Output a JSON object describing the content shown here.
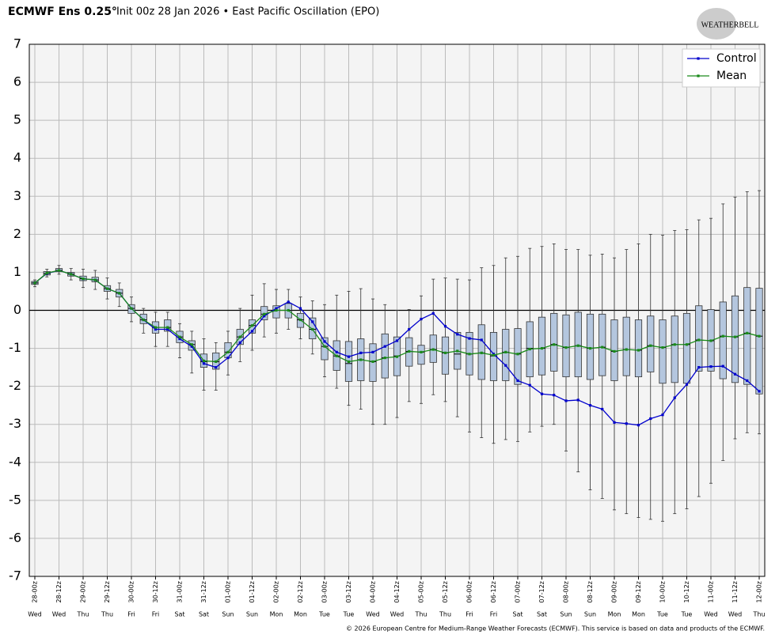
{
  "chart_data": {
    "type": "box",
    "title": "ECMWF Ens 0.25°",
    "subtitle": "Init 00z 28 Jan 2026 • East Pacific Oscillation (EPO)",
    "logo": "WEATHERBELL",
    "credit": "© 2026 European Centre for Medium-Range Weather Forecasts (ECMWF). This service is based on data and products of the ECMWF.",
    "categories": [
      "28-00z",
      null,
      "28-12z",
      null,
      "29-00z",
      null,
      "29-12z",
      null,
      "30-00z",
      null,
      "30-12z",
      null,
      "31-00z",
      null,
      "31-12z",
      null,
      "01-00z",
      null,
      "01-12z",
      null,
      "02-00z",
      null,
      "02-12z",
      null,
      "03-00z",
      null,
      "03-12z",
      null,
      "04-00z",
      null,
      "04-12z",
      null,
      "05-00z",
      null,
      "05-12z",
      null,
      "06-00z",
      null,
      "06-12z",
      null,
      "07-00z",
      null,
      "07-12z",
      null,
      "08-00z",
      null,
      "08-12z",
      null,
      "09-00z",
      null,
      "09-12z",
      null,
      "10-00z",
      null,
      "10-12z",
      null,
      "11-00z",
      null,
      "11-12z",
      null,
      "12-00z"
    ],
    "weekdays": [
      "Wed",
      null,
      "Wed",
      null,
      "Thu",
      null,
      "Thu",
      null,
      "Fri",
      null,
      "Fri",
      null,
      "Sat",
      null,
      "Sat",
      null,
      "Sun",
      null,
      "Sun",
      null,
      "Mon",
      null,
      "Mon",
      null,
      "Tue",
      null,
      "Tue",
      null,
      "Wed",
      null,
      "Wed",
      null,
      "Thu",
      null,
      "Thu",
      null,
      "Fri",
      null,
      "Fri",
      null,
      "Sat",
      null,
      "Sat",
      null,
      "Sun",
      null,
      "Sun",
      null,
      "Mon",
      null,
      "Mon",
      null,
      "Tue",
      null,
      "Tue",
      null,
      "Wed",
      null,
      "Wed",
      null,
      "Thu"
    ],
    "ylim": [
      -7,
      7
    ],
    "yticks": [
      -7,
      -6,
      -5,
      -4,
      -3,
      -2,
      -1,
      0,
      1,
      2,
      3,
      4,
      5,
      6,
      7
    ],
    "grid": true,
    "legend": "upper right",
    "box_color": "#b4c6de",
    "boxes": {
      "low": [
        0.62,
        0.88,
        0.95,
        0.8,
        0.6,
        0.55,
        0.3,
        0.1,
        -0.3,
        -0.6,
        -0.95,
        -0.95,
        -1.25,
        -1.65,
        -2.1,
        -2.1,
        -1.7,
        -1.35,
        -1.05,
        -0.7,
        -0.6,
        -0.5,
        -0.75,
        -1.15,
        -1.75,
        -2.05,
        -2.5,
        -2.6,
        -3.0,
        -3.0,
        -2.82,
        -2.4,
        -2.45,
        -2.22,
        -2.4,
        -2.8,
        -3.2,
        -3.35,
        -3.5,
        -3.4,
        -3.45,
        -3.2,
        -3.05,
        -3.0,
        -3.7,
        -4.25,
        -4.72,
        -4.95,
        -5.25,
        -5.35,
        -5.45,
        -5.5,
        -5.55,
        -5.35,
        -5.22,
        -4.9,
        -4.55,
        -3.95,
        -3.38,
        -3.22,
        -3.25
      ],
      "q1": [
        0.68,
        0.93,
        1.02,
        0.9,
        0.78,
        0.75,
        0.5,
        0.35,
        -0.08,
        -0.35,
        -0.6,
        -0.55,
        -0.85,
        -1.05,
        -1.5,
        -1.55,
        -1.25,
        -0.9,
        -0.6,
        -0.25,
        -0.2,
        -0.2,
        -0.45,
        -0.75,
        -1.3,
        -1.58,
        -1.87,
        -1.85,
        -1.87,
        -1.78,
        -1.72,
        -1.47,
        -1.42,
        -1.37,
        -1.68,
        -1.55,
        -1.7,
        -1.82,
        -1.85,
        -1.85,
        -1.95,
        -1.75,
        -1.7,
        -1.6,
        -1.75,
        -1.75,
        -1.82,
        -1.72,
        -1.85,
        -1.72,
        -1.75,
        -1.62,
        -1.92,
        -1.9,
        -1.92,
        -1.6,
        -1.6,
        -1.8,
        -1.9,
        -1.95,
        -2.2
      ],
      "median": [
        0.72,
        0.97,
        1.05,
        0.95,
        0.83,
        0.8,
        0.57,
        0.45,
        0.05,
        -0.25,
        -0.45,
        -0.45,
        -0.7,
        -0.9,
        -1.35,
        -1.35,
        -1.1,
        -0.7,
        -0.4,
        -0.1,
        0,
        0,
        -0.25,
        -0.5,
        -0.95,
        -1.2,
        -1.4,
        -1.3,
        -1.35,
        -1.25,
        -1.2,
        -1.08,
        -1.1,
        -1.03,
        -1.12,
        -1.15,
        -1.15,
        -1.12,
        -1.2,
        -1.1,
        -1.15,
        -1.0,
        -1.0,
        -0.9,
        -0.98,
        -0.93,
        -1.0,
        -0.97,
        -1.08,
        -1.03,
        -1.05,
        -0.93,
        -0.98,
        -0.9,
        -0.9,
        -0.78,
        -0.8,
        -0.68,
        -0.7,
        -0.6,
        -0.68
      ],
      "q3": [
        0.76,
        1.02,
        1.1,
        1.0,
        0.9,
        0.87,
        0.65,
        0.55,
        0.15,
        -0.1,
        -0.3,
        -0.25,
        -0.55,
        -0.8,
        -1.15,
        -1.12,
        -0.85,
        -0.5,
        -0.25,
        0.1,
        0.12,
        0.18,
        -0.08,
        -0.2,
        -0.72,
        -0.8,
        -0.82,
        -0.75,
        -0.88,
        -0.62,
        -0.7,
        -0.72,
        -0.92,
        -0.65,
        -0.7,
        -0.58,
        -0.58,
        -0.38,
        -0.58,
        -0.5,
        -0.48,
        -0.3,
        -0.18,
        -0.08,
        -0.12,
        -0.05,
        -0.1,
        -0.1,
        -0.25,
        -0.18,
        -0.25,
        -0.15,
        -0.25,
        -0.15,
        -0.08,
        0.12,
        0.02,
        0.22,
        0.38,
        0.6,
        0.58
      ],
      "high": [
        0.8,
        1.08,
        1.18,
        1.1,
        1.08,
        1.05,
        0.85,
        0.72,
        0.35,
        0.05,
        -0.05,
        -0.05,
        -0.35,
        -0.55,
        -0.75,
        -0.85,
        -0.55,
        0.05,
        0.4,
        0.7,
        0.55,
        0.55,
        0.35,
        0.25,
        0.15,
        0.4,
        0.5,
        0.57,
        0.3,
        0.15,
        0.0,
        0.02,
        0.38,
        0.82,
        0.85,
        0.82,
        0.8,
        1.12,
        1.18,
        1.38,
        1.42,
        1.63,
        1.68,
        1.75,
        1.6,
        1.6,
        1.45,
        1.48,
        1.38,
        1.6,
        1.75,
        2.0,
        1.98,
        2.1,
        2.12,
        2.38,
        2.42,
        2.8,
        2.98,
        3.12,
        3.15
      ]
    },
    "series": [
      {
        "name": "Control",
        "color": "#0000cc",
        "values": [
          0.72,
          0.97,
          1.05,
          0.95,
          0.83,
          0.8,
          0.57,
          0.45,
          0.05,
          -0.25,
          -0.5,
          -0.5,
          -0.75,
          -0.95,
          -1.4,
          -1.5,
          -1.25,
          -0.85,
          -0.55,
          -0.15,
          0.05,
          0.22,
          0.05,
          -0.3,
          -0.82,
          -1.1,
          -1.22,
          -1.12,
          -1.1,
          -0.95,
          -0.8,
          -0.5,
          -0.23,
          -0.08,
          -0.42,
          -0.63,
          -0.74,
          -0.78,
          -1.15,
          -1.45,
          -1.85,
          -1.97,
          -2.2,
          -2.23,
          -2.38,
          -2.36,
          -2.5,
          -2.6,
          -2.95,
          -2.98,
          -3.02,
          -2.85,
          -2.75,
          -2.3,
          -1.95,
          -1.5,
          -1.48,
          -1.47,
          -1.68,
          -1.85,
          -2.13
        ]
      },
      {
        "name": "Mean",
        "color": "#1a8a1a",
        "values": [
          0.72,
          0.98,
          1.05,
          0.95,
          0.83,
          0.8,
          0.57,
          0.45,
          0.05,
          -0.25,
          -0.45,
          -0.45,
          -0.7,
          -0.9,
          -1.33,
          -1.35,
          -1.1,
          -0.7,
          -0.4,
          -0.1,
          0,
          0,
          -0.25,
          -0.5,
          -0.95,
          -1.2,
          -1.35,
          -1.3,
          -1.35,
          -1.25,
          -1.22,
          -1.08,
          -1.1,
          -1.03,
          -1.12,
          -1.07,
          -1.15,
          -1.12,
          -1.18,
          -1.1,
          -1.15,
          -1.02,
          -1.0,
          -0.9,
          -0.98,
          -0.93,
          -1.0,
          -0.97,
          -1.08,
          -1.03,
          -1.05,
          -0.93,
          -0.98,
          -0.9,
          -0.9,
          -0.78,
          -0.8,
          -0.68,
          -0.7,
          -0.6,
          -0.68
        ]
      }
    ]
  }
}
